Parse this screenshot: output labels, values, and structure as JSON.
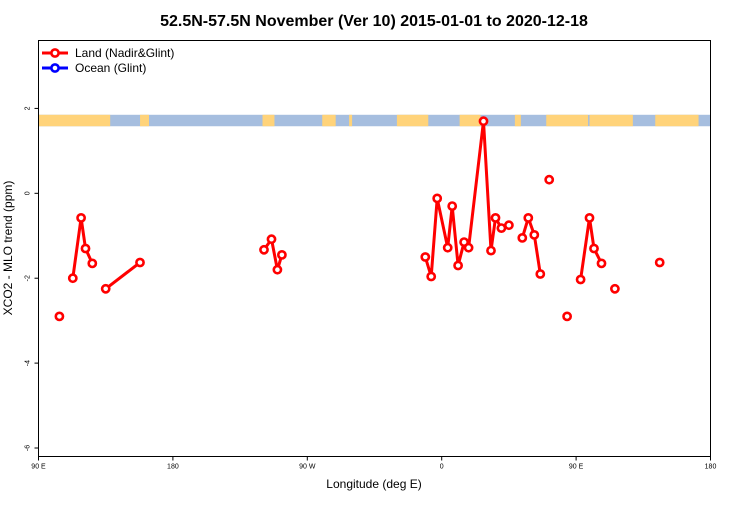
{
  "chart_data": {
    "type": "line",
    "title": "52.5N-57.5N November (Ver 10)   2015-01-01 to 2020-12-18",
    "xlabel": "Longitude (deg E)",
    "ylabel": "XCO2 - MLO trend (ppm)",
    "xlim": [
      90,
      540
    ],
    "ylim": [
      -6.2,
      3.6
    ],
    "x_ticks": [
      {
        "value": 90,
        "label": "90 E"
      },
      {
        "value": 180,
        "label": "180"
      },
      {
        "value": 270,
        "label": "90 W"
      },
      {
        "value": 360,
        "label": "0"
      },
      {
        "value": 450,
        "label": "90 E"
      },
      {
        "value": 540,
        "label": "180"
      }
    ],
    "y_ticks": [
      {
        "value": 2,
        "label": "2"
      },
      {
        "value": 0,
        "label": "0"
      },
      {
        "value": -2,
        "label": "-2"
      },
      {
        "value": -4,
        "label": "-4"
      },
      {
        "value": -6,
        "label": "-6"
      }
    ],
    "legend": {
      "placement": "top-left",
      "entries": [
        {
          "label": "Land (Nadir&Glint)",
          "color": "#ff0000"
        },
        {
          "label": "Ocean (Glint)",
          "color": "#0000ff"
        }
      ]
    },
    "land_sea_band": {
      "y_range": [
        1.58,
        1.85
      ],
      "land_color": "#ffd37a",
      "ocean_color": "#a6bedf",
      "land_intervals": [
        [
          90,
          138
        ],
        [
          158,
          164
        ],
        [
          240,
          248
        ],
        [
          280,
          289
        ],
        [
          298,
          300
        ],
        [
          330,
          351
        ],
        [
          372,
          386
        ],
        [
          409,
          413
        ],
        [
          430,
          458
        ],
        [
          459,
          488
        ],
        [
          503,
          532
        ]
      ]
    },
    "series": [
      {
        "name": "Land (Nadir&Glint)",
        "color": "#ff0000",
        "segments": [
          [
            [
              104,
              -2.9
            ]
          ],
          [
            [
              113,
              -2.0
            ],
            [
              118.5,
              -0.58
            ],
            [
              121.5,
              -1.3
            ],
            [
              126,
              -1.65
            ]
          ],
          [
            [
              135,
              -2.25
            ],
            [
              158,
              -1.63
            ]
          ],
          [
            [
              241,
              -1.33
            ],
            [
              246,
              -1.08
            ],
            [
              250,
              -1.8
            ],
            [
              253,
              -1.45
            ]
          ],
          [
            [
              349,
              -1.5
            ],
            [
              353,
              -1.96
            ],
            [
              357,
              -0.12
            ],
            [
              364,
              -1.28
            ],
            [
              367,
              -0.3
            ],
            [
              371,
              -1.7
            ],
            [
              375,
              -1.15
            ],
            [
              378,
              -1.28
            ],
            [
              388,
              1.7
            ],
            [
              393,
              -1.35
            ],
            [
              396,
              -0.58
            ],
            [
              400,
              -0.82
            ],
            [
              405,
              -0.75
            ]
          ],
          [
            [
              414,
              -1.05
            ],
            [
              418,
              -0.58
            ],
            [
              422,
              -0.98
            ],
            [
              426,
              -1.9
            ]
          ],
          [
            [
              432,
              0.32
            ]
          ],
          [
            [
              444,
              -2.9
            ]
          ],
          [
            [
              453,
              -2.03
            ],
            [
              459,
              -0.58
            ],
            [
              462,
              -1.3
            ],
            [
              467,
              -1.65
            ]
          ],
          [
            [
              476,
              -2.25
            ]
          ],
          [
            [
              506,
              -1.63
            ]
          ]
        ]
      },
      {
        "name": "Ocean (Glint)",
        "color": "#0000ff",
        "segments": []
      }
    ]
  }
}
